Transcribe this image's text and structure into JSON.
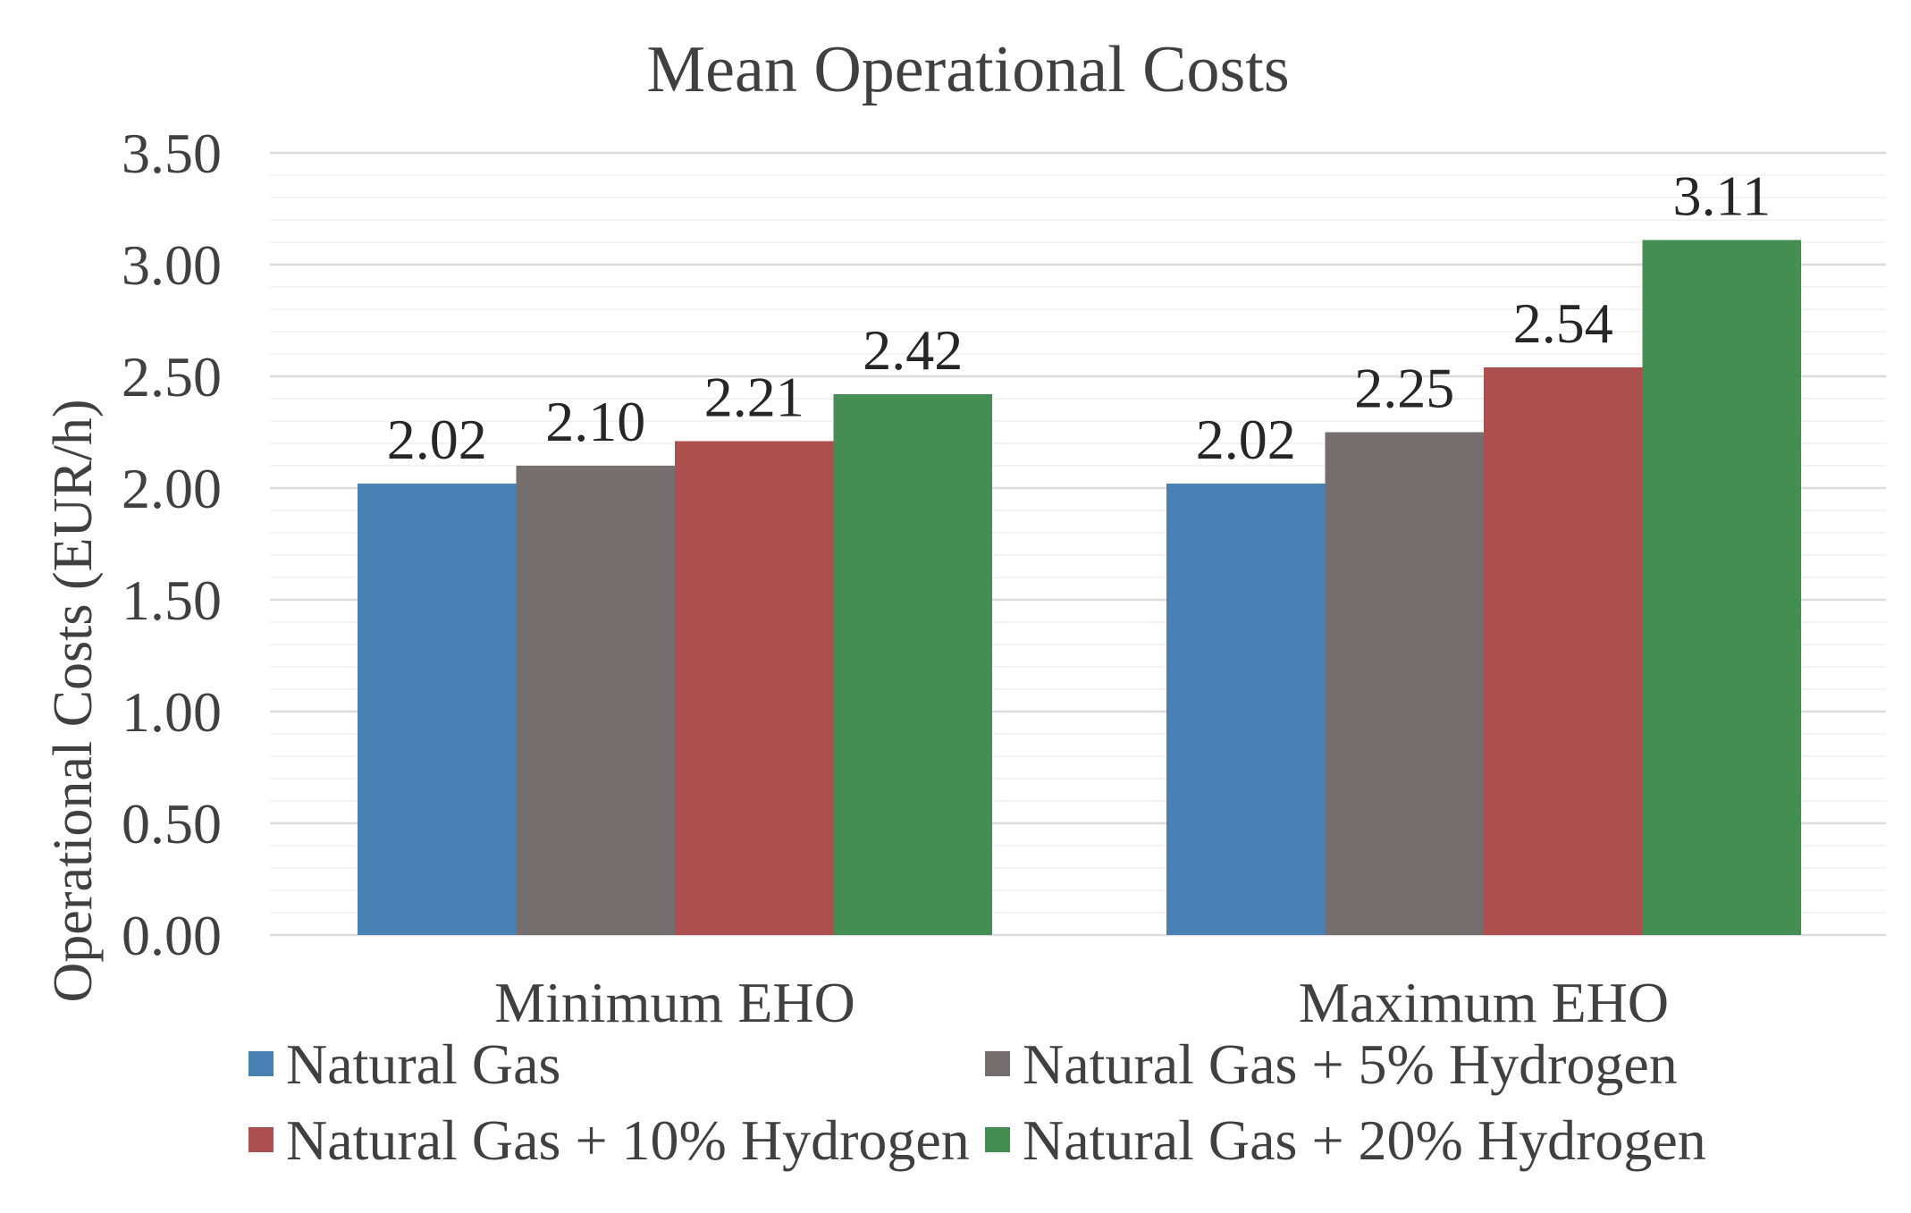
{
  "chart_data": {
    "type": "bar",
    "title": "Mean Operational Costs",
    "xlabel": "",
    "ylabel": "Operational Costs (EUR/h)",
    "ylim": [
      0,
      3.5
    ],
    "yticks": [
      "0.00",
      "0.50",
      "1.00",
      "1.50",
      "2.00",
      "2.50",
      "3.00",
      "3.50"
    ],
    "categories": [
      "Minimum EHO",
      "Maximum EHO"
    ],
    "series": [
      {
        "name": "Natural Gas",
        "values": [
          2.02,
          2.02
        ],
        "labels": [
          "2.02",
          "2.02"
        ],
        "color": "#4a81b5"
      },
      {
        "name": "Natural Gas + 5% Hydrogen",
        "values": [
          2.1,
          2.25
        ],
        "labels": [
          "2.10",
          "2.25"
        ],
        "color": "#746e6e"
      },
      {
        "name": "Natural Gas + 10% Hydrogen",
        "values": [
          2.21,
          2.54
        ],
        "labels": [
          "2.21",
          "2.54"
        ],
        "color": "#ad4f4f"
      },
      {
        "name": "Natural Gas + 20% Hydrogen",
        "values": [
          2.42,
          3.11
        ],
        "labels": [
          "2.42",
          "3.11"
        ],
        "color": "#458e53"
      }
    ],
    "grid": true,
    "legend_position": "bottom"
  }
}
